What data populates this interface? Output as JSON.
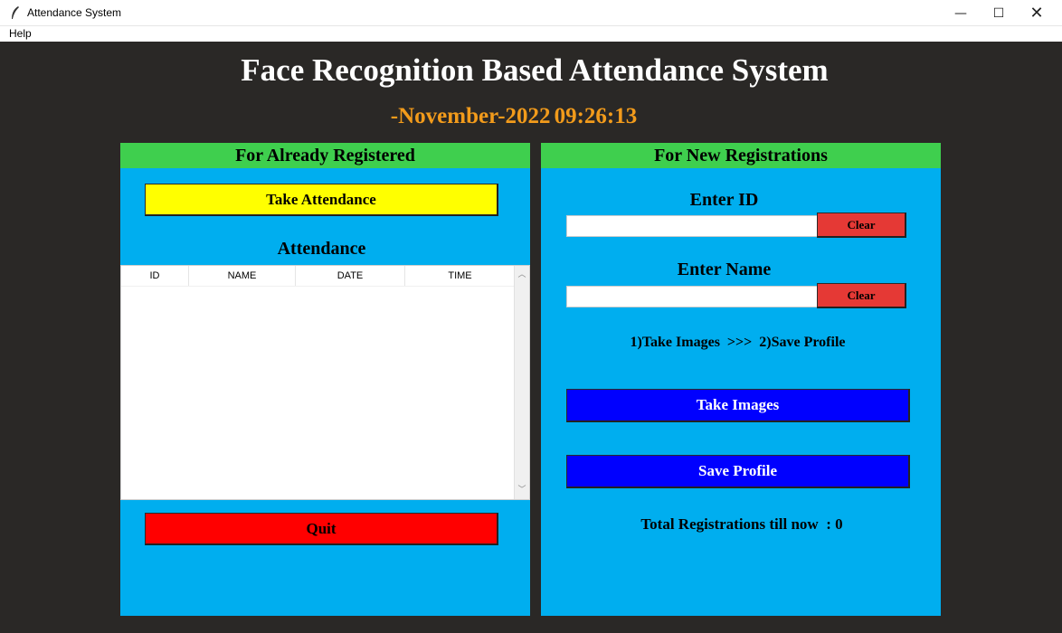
{
  "window": {
    "title": "Attendance System",
    "icon": "feather-icon",
    "controls": {
      "minimize": "—",
      "maximize": "☐",
      "close": "✕"
    }
  },
  "menu": {
    "items": [
      "Help"
    ]
  },
  "header": {
    "title": "Face Recognition Based Attendance System",
    "date": "-November-2022",
    "time": "09:26:13"
  },
  "left_panel": {
    "heading": "For Already Registered",
    "take_attendance_label": "Take Attendance",
    "attendance_label": "Attendance",
    "table": {
      "columns": [
        "ID",
        "NAME",
        "DATE",
        "TIME"
      ],
      "rows": []
    },
    "quit_label": "Quit"
  },
  "right_panel": {
    "heading": "For New Registrations",
    "id_label": "Enter ID",
    "id_value": "",
    "name_label": "Enter Name",
    "name_value": "",
    "clear_label": "Clear",
    "steps_text": "1)Take Images  >>>  2)Save Profile",
    "take_images_label": "Take Images",
    "save_profile_label": "Save Profile",
    "total_text": "Total Registrations till now  : 0"
  },
  "colors": {
    "background": "#2a2826",
    "panel": "#00aeef",
    "panel_header": "#3fcf4e",
    "take_attendance": "#ffff00",
    "quit": "#ff0000",
    "clear": "#e53935",
    "blue_button": "#0000ff",
    "datetime": "#f29b1b"
  }
}
